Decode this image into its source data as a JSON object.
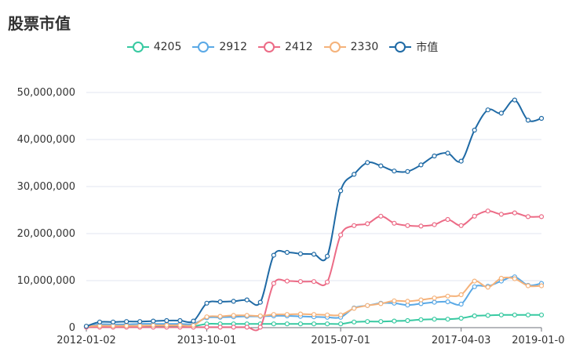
{
  "chart_data": {
    "type": "line",
    "title": "股票市值",
    "x_tick_labels": [
      "2012-01-02",
      "2013-10-01",
      "2015-07-01",
      "2017-04-03",
      "2019-01-01"
    ],
    "ylim": [
      0,
      50000000
    ],
    "y_ticks": [
      0,
      10000000,
      20000000,
      30000000,
      40000000,
      50000000
    ],
    "y_tick_labels": [
      "0",
      "10,000,000",
      "20,000,000",
      "30,000,000",
      "40,000,000",
      "50,000,000"
    ],
    "grid": true,
    "legend_position": "top-center",
    "series": [
      {
        "name": "4205",
        "color": "#37c9a1",
        "values": [
          200000,
          300000,
          300000,
          300000,
          300000,
          300000,
          300000,
          300000,
          300000,
          800000,
          800000,
          800000,
          800000,
          800000,
          800000,
          800000,
          800000,
          800000,
          800000,
          800000,
          1200000,
          1300000,
          1300000,
          1400000,
          1500000,
          1700000,
          1800000,
          1800000,
          2000000,
          2500000,
          2600000,
          2700000,
          2700000,
          2700000,
          2700000
        ]
      },
      {
        "name": "2912",
        "color": "#5aa9e6",
        "values": [
          200000,
          700000,
          700000,
          700000,
          800000,
          800000,
          800000,
          800000,
          800000,
          2100000,
          2200000,
          2300000,
          2400000,
          2400000,
          2500000,
          2500000,
          2400000,
          2300000,
          2200000,
          2200000,
          4200000,
          4700000,
          5200000,
          5200000,
          4800000,
          5100000,
          5400000,
          5500000,
          5000000,
          8700000,
          8800000,
          9900000,
          10800000,
          9000000,
          9400000
        ]
      },
      {
        "name": "2412",
        "color": "#ec6b86",
        "values": [
          100000,
          100000,
          100000,
          100000,
          100000,
          100000,
          100000,
          100000,
          100000,
          100000,
          100000,
          100000,
          100000,
          100000,
          9400000,
          9900000,
          9800000,
          9800000,
          9700000,
          19700000,
          21700000,
          22100000,
          23700000,
          22200000,
          21700000,
          21600000,
          21900000,
          23000000,
          21700000,
          23700000,
          24800000,
          24100000,
          24400000,
          23600000,
          23600000
        ]
      },
      {
        "name": "2330",
        "color": "#f5b27a",
        "values": [
          300000,
          400000,
          400000,
          400000,
          400000,
          500000,
          500000,
          500000,
          500000,
          2300000,
          2400000,
          2600000,
          2600000,
          2500000,
          2800000,
          2800000,
          2900000,
          2800000,
          2700000,
          2700000,
          4100000,
          4700000,
          5100000,
          5700000,
          5600000,
          5900000,
          6300000,
          6700000,
          7000000,
          9900000,
          8600000,
          10500000,
          10400000,
          8900000,
          8900000
        ]
      },
      {
        "name": "市值",
        "color": "#1f6aa5",
        "values": [
          300000,
          1200000,
          1200000,
          1300000,
          1300000,
          1400000,
          1500000,
          1500000,
          1400000,
          5200000,
          5500000,
          5600000,
          5900000,
          5400000,
          15400000,
          16000000,
          15700000,
          15600000,
          15200000,
          29100000,
          32600000,
          35100000,
          34400000,
          33300000,
          33200000,
          34600000,
          36500000,
          37100000,
          35400000,
          42000000,
          46300000,
          45600000,
          48400000,
          44100000,
          44500000
        ]
      }
    ]
  }
}
